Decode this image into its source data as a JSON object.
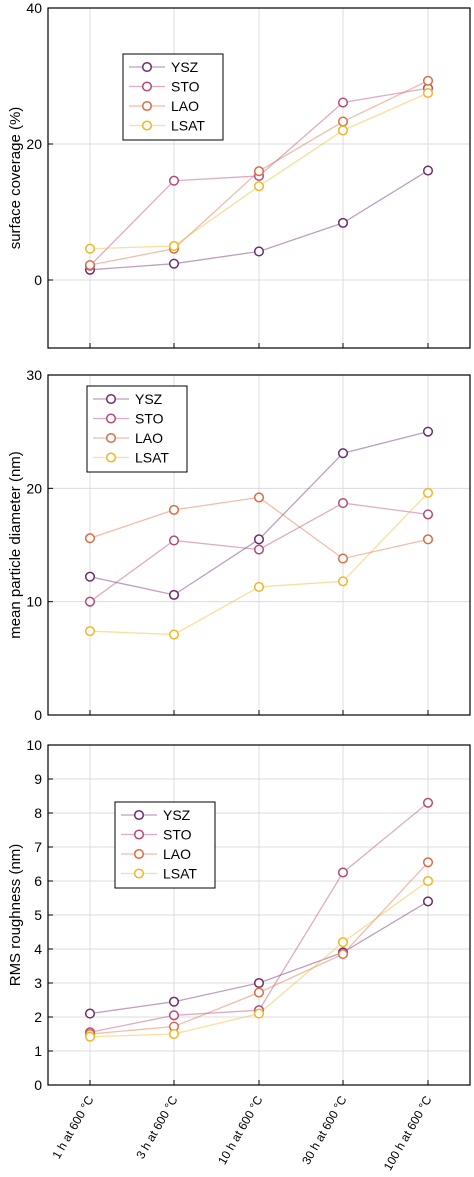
{
  "chart_data": [
    {
      "type": "line",
      "ylabel": "surface coverage (%)",
      "xlabel": "",
      "ylim": [
        -10,
        40
      ],
      "yticks": [
        0,
        20,
        40
      ],
      "categories": [
        "1 h at 600 °C",
        "3 h at 600 °C",
        "10 h at 600 °C",
        "30 h at 600 °C",
        "100 h at 600 °C"
      ],
      "grid": true,
      "legend_position": "top-left",
      "series": [
        {
          "name": "YSZ",
          "color": "#6b2d6e",
          "values": [
            1.5,
            2.4,
            4.2,
            8.4,
            16.1
          ]
        },
        {
          "name": "STO",
          "color": "#b8487a",
          "values": [
            2.1,
            14.6,
            15.3,
            26.1,
            28.2
          ]
        },
        {
          "name": "LAO",
          "color": "#e06a45",
          "values": [
            2.2,
            4.6,
            16.0,
            23.3,
            29.3
          ]
        },
        {
          "name": "LSAT",
          "color": "#f5b521",
          "values": [
            4.6,
            5.0,
            13.8,
            22.0,
            27.5
          ]
        }
      ]
    },
    {
      "type": "line",
      "ylabel": "mean particle diameter (nm)",
      "xlabel": "",
      "ylim": [
        0,
        30
      ],
      "yticks": [
        0,
        10,
        20,
        30
      ],
      "categories": [
        "1 h at 600 °C",
        "3 h at 600 °C",
        "10 h at 600 °C",
        "30 h at 600 °C",
        "100 h at 600 °C"
      ],
      "grid": true,
      "legend_position": "top-left",
      "series": [
        {
          "name": "YSZ",
          "color": "#6b2d6e",
          "values": [
            12.2,
            10.6,
            15.5,
            23.1,
            25.0
          ]
        },
        {
          "name": "STO",
          "color": "#b8487a",
          "values": [
            10.0,
            15.4,
            14.6,
            18.7,
            17.7
          ]
        },
        {
          "name": "LAO",
          "color": "#e06a45",
          "values": [
            15.6,
            18.1,
            19.2,
            13.8,
            15.5
          ]
        },
        {
          "name": "LSAT",
          "color": "#f5b521",
          "values": [
            7.4,
            7.1,
            11.3,
            11.8,
            19.6
          ]
        }
      ]
    },
    {
      "type": "line",
      "ylabel": "RMS roughness (nm)",
      "xlabel": "",
      "ylim": [
        0,
        10
      ],
      "yticks": [
        0,
        1,
        2,
        3,
        4,
        5,
        6,
        7,
        8,
        9,
        10
      ],
      "categories": [
        "1 h at 600 °C",
        "3 h at 600 °C",
        "10 h at 600 °C",
        "30 h at 600 °C",
        "100 h at 600 °C"
      ],
      "grid": true,
      "legend_position": "middle-left",
      "series": [
        {
          "name": "YSZ",
          "color": "#6b2d6e",
          "values": [
            2.1,
            2.45,
            3.0,
            3.9,
            5.4
          ]
        },
        {
          "name": "STO",
          "color": "#b8487a",
          "values": [
            1.55,
            2.05,
            2.2,
            6.25,
            8.3
          ]
        },
        {
          "name": "LAO",
          "color": "#e06a45",
          "values": [
            1.5,
            1.72,
            2.72,
            3.85,
            6.55
          ]
        },
        {
          "name": "LSAT",
          "color": "#f5b521",
          "values": [
            1.42,
            1.5,
            2.1,
            4.2,
            6.0
          ]
        }
      ]
    }
  ]
}
